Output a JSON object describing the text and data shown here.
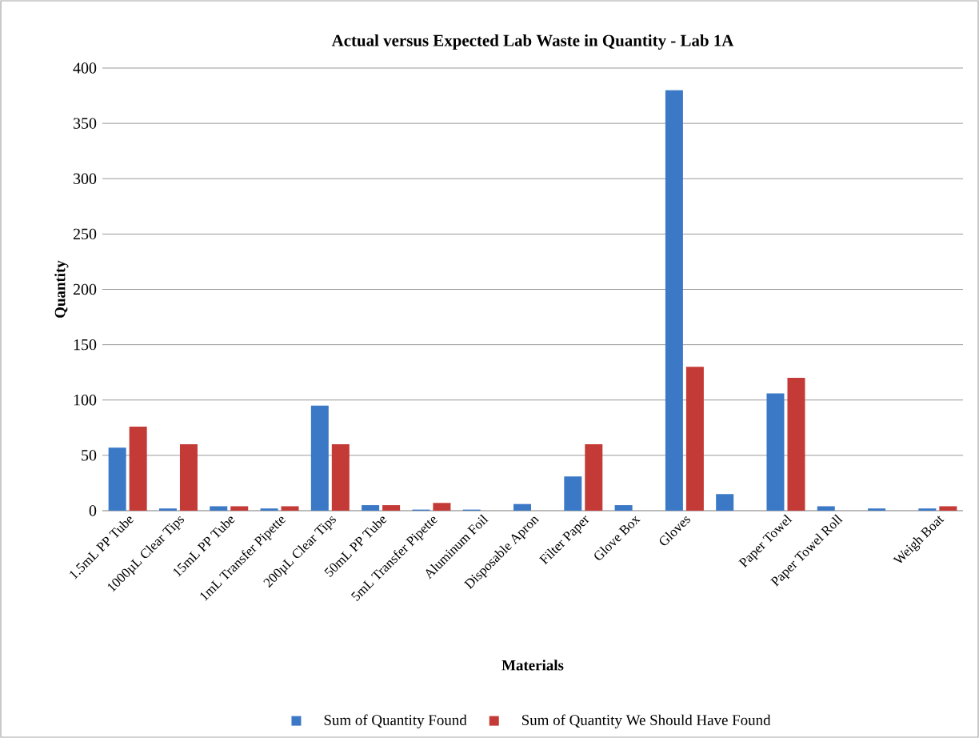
{
  "chart_data": {
    "type": "bar",
    "title": "Actual versus Expected Lab Waste in Quantity - Lab 1A",
    "xlabel": "Materials",
    "ylabel": "Quantity",
    "categories": [
      "1.5mL PP Tube",
      "1000µL Clear Tips",
      "15mL PP Tube",
      "1mL Transfer Pipette",
      "200µL Clear Tips",
      "50mL PP Tube",
      "5mL Transfer Pipette",
      "Aluminum Foil",
      "Disposable Apron",
      "Filter Paper",
      "Glove Box",
      "Gloves",
      null,
      "Paper Towel",
      "Paper Towel Roll",
      null,
      "Weigh Boat"
    ],
    "series": [
      {
        "name": "Sum of Quantity Found",
        "color": "#3b78c6",
        "values": [
          57,
          2,
          4,
          2,
          95,
          5,
          1,
          1,
          6,
          31,
          5,
          380,
          15,
          106,
          4,
          2,
          2
        ]
      },
      {
        "name": "Sum of Quantity We Should Have Found",
        "color": "#c43a36",
        "values": [
          76,
          60,
          4,
          4,
          60,
          5,
          7,
          null,
          null,
          60,
          null,
          130,
          null,
          120,
          null,
          null,
          4
        ]
      }
    ],
    "ylim": [
      0,
      400
    ],
    "yticks": [
      0,
      50,
      100,
      150,
      200,
      250,
      300,
      350,
      400
    ],
    "grid": "y",
    "legend": "bottom"
  }
}
